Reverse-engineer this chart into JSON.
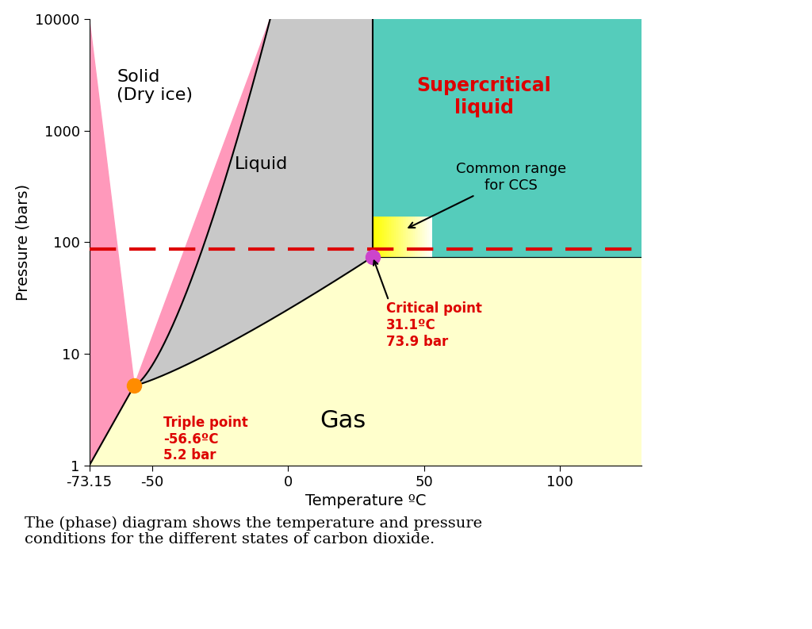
{
  "xlabel": "Temperature ºC",
  "ylabel": "Pressure (bars)",
  "xlim": [
    -73.15,
    130
  ],
  "ylim_log": [
    1,
    10000
  ],
  "xticks": [
    -73.15,
    -50,
    0,
    50,
    100
  ],
  "yticks": [
    1,
    10,
    100,
    1000,
    10000
  ],
  "triple_point": [
    -56.6,
    5.2
  ],
  "critical_point": [
    31.1,
    73.9
  ],
  "dashed_line_pressure": 87,
  "colors": {
    "solid": "#FF99BB",
    "liquid": "#C8C8C8",
    "gas": "#FFFFCC",
    "supercritical": "#55CCBB",
    "ccs_box_left": "#FFFFAA",
    "ccs_box_right": "#FFFFFF",
    "triple_point_marker": "#FF8C00",
    "critical_point_marker": "#CC44CC",
    "dashed_line": "#DD0000",
    "text_red": "#DD0000",
    "text_black": "#000000",
    "background": "#FFFFFF"
  },
  "caption": "The (phase) diagram shows the temperature and pressure\nconditions for the different states of carbon dioxide.",
  "figsize": [
    10.24,
    7.93
  ],
  "dpi": 100
}
